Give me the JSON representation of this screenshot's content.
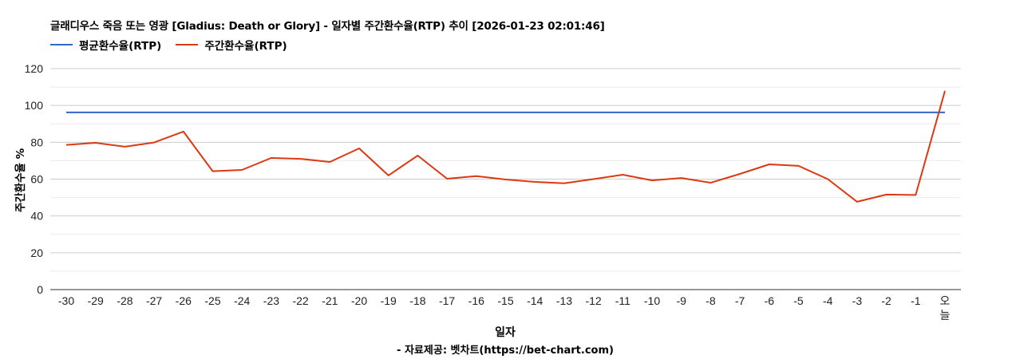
{
  "header": {
    "title": "글래디우스 죽음 또는 영광 [Gladius: Death or Glory] - 일자별 주간환수율(RTP) 추이 [2026-01-23 02:01:46]"
  },
  "legend": [
    {
      "name": "평균환수율(RTP)",
      "color": "#3366cc"
    },
    {
      "name": "주간환수율(RTP)",
      "color": "#dc3912"
    }
  ],
  "axes": {
    "ylabel": "주간환수율 %",
    "xlabel": "일자"
  },
  "footer": {
    "source": "- 자료제공: 벳차트(https://bet-chart.com)"
  },
  "chart_data": {
    "type": "line",
    "title": "글래디우스 죽음 또는 영광 [Gladius: Death or Glory] - 일자별 주간환수율(RTP) 추이 [2026-01-23 02:01:46]",
    "xlabel": "일자",
    "ylabel": "주간환수율 %",
    "ylim": [
      0,
      120
    ],
    "yticks": [
      0,
      20,
      40,
      60,
      80,
      100,
      120
    ],
    "grid": true,
    "legend_position": "top",
    "categories": [
      "-30",
      "-29",
      "-28",
      "-27",
      "-26",
      "-25",
      "-24",
      "-23",
      "-22",
      "-21",
      "-20",
      "-19",
      "-18",
      "-17",
      "-16",
      "-15",
      "-14",
      "-13",
      "-12",
      "-11",
      "-10",
      "-9",
      "-8",
      "-7",
      "-6",
      "-5",
      "-4",
      "-3",
      "-2",
      "-1",
      "오늘"
    ],
    "series": [
      {
        "name": "평균환수율(RTP)",
        "color": "#3366cc",
        "values": [
          96.2,
          96.2,
          96.2,
          96.2,
          96.2,
          96.2,
          96.2,
          96.2,
          96.2,
          96.2,
          96.2,
          96.2,
          96.2,
          96.2,
          96.2,
          96.2,
          96.2,
          96.2,
          96.2,
          96.2,
          96.2,
          96.2,
          96.2,
          96.2,
          96.2,
          96.2,
          96.2,
          96.2,
          96.2,
          96.2,
          96.2
        ]
      },
      {
        "name": "주간환수율(RTP)",
        "color": "#dc3912",
        "values": [
          78.6,
          79.7,
          77.6,
          79.9,
          85.8,
          64.3,
          65.0,
          71.5,
          71.0,
          69.3,
          76.7,
          62.0,
          72.8,
          60.2,
          61.6,
          59.8,
          58.5,
          57.7,
          60.0,
          62.4,
          59.3,
          60.6,
          58.0,
          62.8,
          68.0,
          67.2,
          60.0,
          47.7,
          51.6,
          51.4,
          107.9
        ]
      }
    ]
  }
}
